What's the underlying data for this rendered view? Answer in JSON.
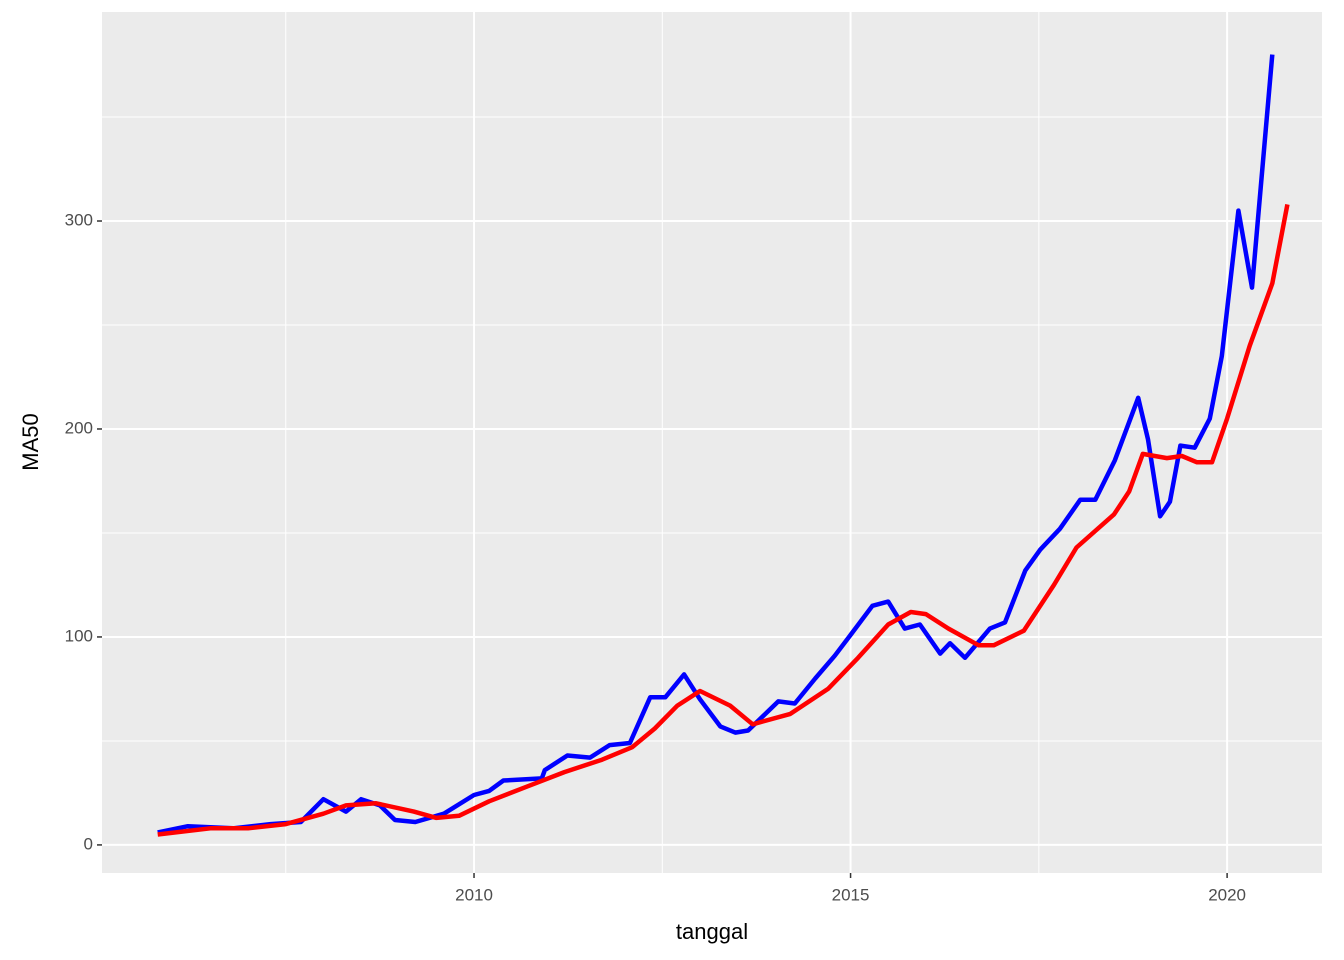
{
  "chart_data": {
    "type": "line",
    "xlabel": "tanggal",
    "ylabel": "MA50",
    "xlim": [
      2005.06,
      2021.26
    ],
    "ylim": [
      -13.5,
      400.5
    ],
    "xticks": [
      2010,
      2015,
      2020
    ],
    "yticks": [
      0,
      100,
      200,
      300
    ],
    "xminor": [
      2007.5,
      2012.5,
      2017.5
    ],
    "yminor": [
      50,
      150,
      250,
      350
    ],
    "grid": true,
    "series": [
      {
        "color": "#0000ff",
        "x": [
          2005.8,
          2006.2,
          2006.8,
          2007.3,
          2007.7,
          2008.0,
          2008.3,
          2008.5,
          2008.75,
          2008.95,
          2009.22,
          2009.6,
          2010.0,
          2010.2,
          2010.39,
          2010.9,
          2010.94,
          2011.24,
          2011.54,
          2011.8,
          2012.07,
          2012.34,
          2012.54,
          2012.79,
          2013.0,
          2013.27,
          2013.47,
          2013.64,
          2014.04,
          2014.26,
          2014.53,
          2014.79,
          2015.0,
          2015.29,
          2015.5,
          2015.72,
          2015.92,
          2016.19,
          2016.32,
          2016.52,
          2016.85,
          2017.05,
          2017.32,
          2017.52,
          2017.78,
          2018.05,
          2018.25,
          2018.51,
          2018.82,
          2018.95,
          2019.11,
          2019.24,
          2019.38,
          2019.57,
          2019.77,
          2019.93,
          2020.15,
          2020.33,
          2020.6
        ],
        "values": [
          6,
          9,
          8,
          10,
          11,
          22,
          16,
          22,
          19,
          12,
          11,
          15,
          24,
          26,
          31,
          32,
          36,
          43,
          42,
          48,
          49,
          71,
          71,
          82,
          70,
          57,
          54,
          55,
          69,
          68,
          80,
          91,
          101,
          115,
          117,
          104,
          106,
          92,
          97,
          90,
          104,
          107,
          132,
          142,
          152,
          166,
          166,
          185,
          215,
          195,
          158,
          165,
          192,
          191,
          205,
          235,
          305,
          268,
          380
        ]
      },
      {
        "color": "#ff0000",
        "x": [
          2005.8,
          2006.5,
          2007.0,
          2007.5,
          2008.0,
          2008.3,
          2008.7,
          2009.2,
          2009.5,
          2009.8,
          2010.2,
          2010.7,
          2011.2,
          2011.7,
          2012.1,
          2012.4,
          2012.7,
          2013.0,
          2013.4,
          2013.7,
          2014.2,
          2014.7,
          2015.1,
          2015.5,
          2015.8,
          2016.0,
          2016.3,
          2016.7,
          2016.9,
          2017.3,
          2017.7,
          2018.0,
          2018.5,
          2018.7,
          2018.88,
          2019.2,
          2019.4,
          2019.6,
          2019.8,
          2020.0,
          2020.3,
          2020.6,
          2020.8
        ],
        "values": [
          5,
          8,
          8,
          10,
          15,
          19,
          20,
          16,
          13,
          14,
          21,
          28,
          35,
          41,
          47,
          56,
          67,
          74,
          67,
          58,
          63,
          75,
          90,
          106,
          112,
          111,
          104,
          96,
          96,
          103,
          125,
          143,
          159,
          170,
          188,
          186,
          187,
          184,
          184,
          205,
          240,
          270,
          308
        ]
      }
    ]
  }
}
